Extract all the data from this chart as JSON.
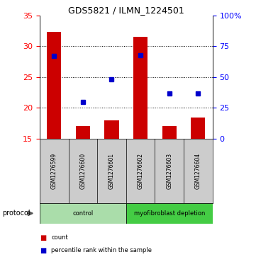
{
  "title": "GDS5821 / ILMN_1224501",
  "samples": [
    "GSM1276599",
    "GSM1276600",
    "GSM1276601",
    "GSM1276602",
    "GSM1276603",
    "GSM1276604"
  ],
  "counts": [
    32.3,
    17.1,
    18.0,
    31.5,
    17.1,
    18.5
  ],
  "percentile_ranks_pct": [
    67,
    30,
    48,
    68,
    37,
    37
  ],
  "ylim_left": [
    15,
    35
  ],
  "ylim_right": [
    0,
    100
  ],
  "yticks_left": [
    15,
    20,
    25,
    30,
    35
  ],
  "yticks_right": [
    0,
    25,
    50,
    75,
    100
  ],
  "ytick_labels_right": [
    "0",
    "25",
    "50",
    "75",
    "100%"
  ],
  "bar_color": "#cc0000",
  "dot_color": "#0000cc",
  "bar_width": 0.5,
  "groups": [
    {
      "label": "control",
      "samples": [
        0,
        1,
        2
      ],
      "color": "#aaddaa"
    },
    {
      "label": "myofibroblast depletion",
      "samples": [
        3,
        4,
        5
      ],
      "color": "#44cc44"
    }
  ],
  "protocol_label": "protocol",
  "legend_count_label": "count",
  "legend_percentile_label": "percentile rank within the sample",
  "sample_box_color": "#cccccc"
}
